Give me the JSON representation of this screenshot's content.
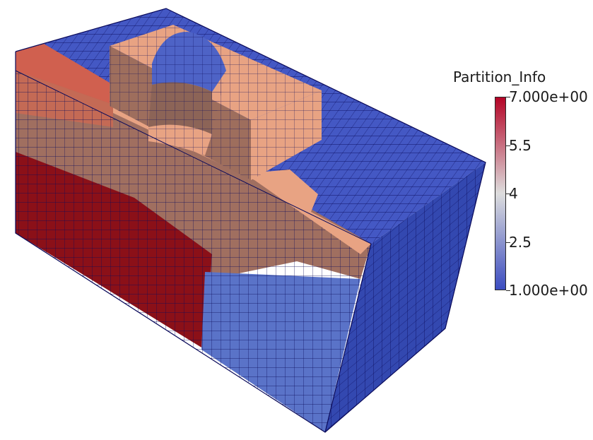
{
  "legend": {
    "title": "Partition_Info",
    "range": [
      1,
      7
    ],
    "ticks": [
      {
        "value": 7,
        "label": "7.000e+00"
      },
      {
        "value": 5.5,
        "label": "5.5"
      },
      {
        "value": 4,
        "label": "4"
      },
      {
        "value": 2.5,
        "label": "2.5"
      },
      {
        "value": 1,
        "label": "1.000e+00"
      }
    ],
    "colors": {
      "low": "#3b4cc0",
      "mid": "#dddddd",
      "high": "#b40426"
    }
  },
  "scene": {
    "colors": {
      "partition_1": "#3b4cc0",
      "partition_1_side": "#2d3da8",
      "partition_2": "#5a73c8",
      "partition_6": "#e8a383",
      "partition_6_front": "#9e6e5d",
      "partition_7": "#d0604f",
      "partition_8": "#8b1018",
      "mesh_line": "#0a0a5a"
    }
  }
}
